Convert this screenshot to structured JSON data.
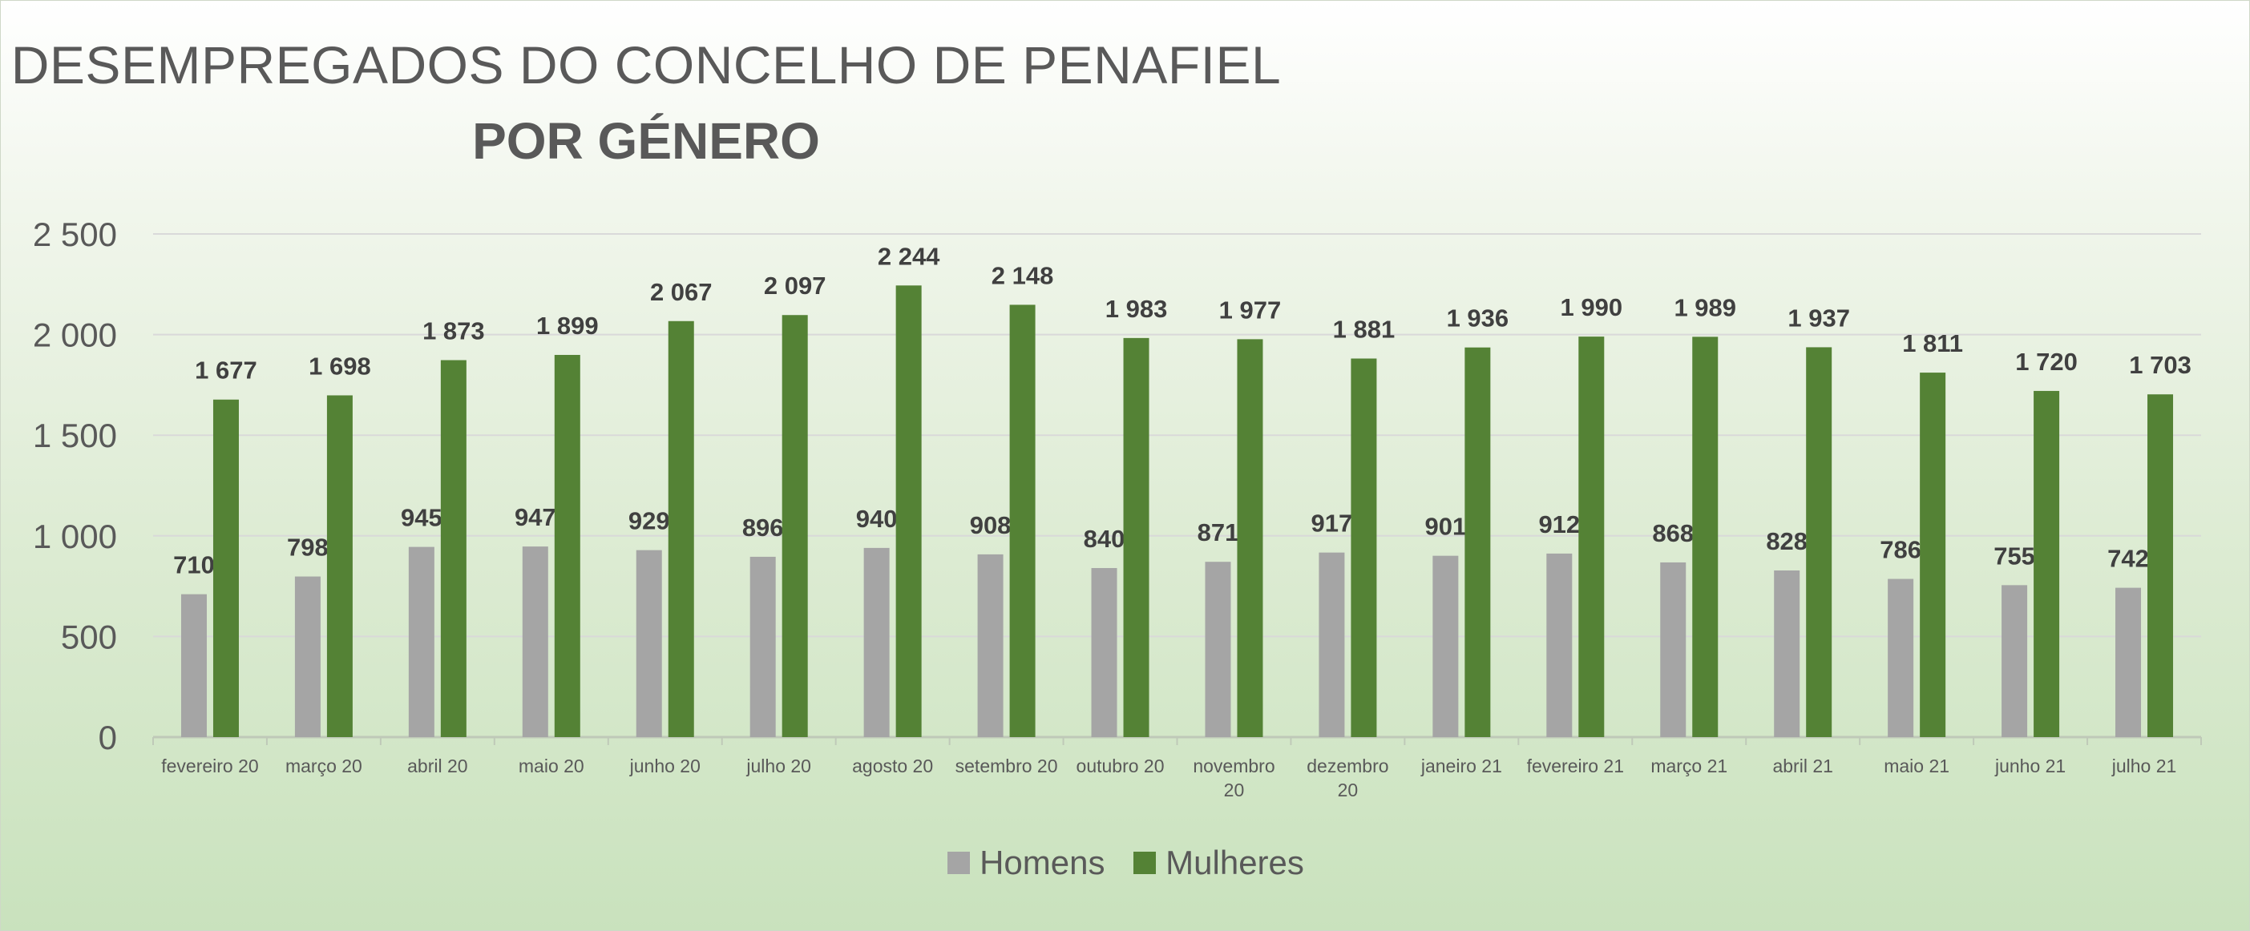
{
  "chart_data": {
    "type": "bar",
    "title": "DESEMPREGADOS DO CONCELHO DE PENAFIEL",
    "subtitle": "POR GÉNERO",
    "categories": [
      [
        "fevereiro 20"
      ],
      [
        "março 20"
      ],
      [
        "abril 20"
      ],
      [
        "maio 20"
      ],
      [
        "junho 20"
      ],
      [
        "julho 20"
      ],
      [
        "agosto 20"
      ],
      [
        "setembro 20"
      ],
      [
        "outubro 20"
      ],
      [
        "novembro",
        "20"
      ],
      [
        "dezembro",
        "20"
      ],
      [
        "janeiro 21"
      ],
      [
        "fevereiro 21"
      ],
      [
        "março 21"
      ],
      [
        "abril 21"
      ],
      [
        "maio 21"
      ],
      [
        "junho 21"
      ],
      [
        "julho 21"
      ]
    ],
    "series": [
      {
        "name": "Homens",
        "color": "#a5a5a5",
        "values": [
          710,
          798,
          945,
          947,
          929,
          896,
          940,
          908,
          840,
          871,
          917,
          901,
          912,
          868,
          828,
          786,
          755,
          742
        ],
        "labels": [
          "710",
          "798",
          "945",
          "947",
          "929",
          "896",
          "940",
          "908",
          "840",
          "871",
          "917",
          "901",
          "912",
          "868",
          "828",
          "786",
          "755",
          "742"
        ]
      },
      {
        "name": "Mulheres",
        "color": "#548235",
        "values": [
          1677,
          1698,
          1873,
          1899,
          2067,
          2097,
          2244,
          2148,
          1983,
          1977,
          1881,
          1936,
          1990,
          1989,
          1937,
          1811,
          1720,
          1703
        ],
        "labels": [
          "1 677",
          "1 698",
          "1 873",
          "1 899",
          "2 067",
          "2 097",
          "2 244",
          "2 148",
          "1 983",
          "1 977",
          "1 881",
          "1 936",
          "1 990",
          "1 989",
          "1 937",
          "1 811",
          "1 720",
          "1 703"
        ]
      }
    ],
    "yticks": [
      0,
      500,
      1000,
      1500,
      2000,
      2500
    ],
    "ytick_labels": [
      "0",
      "500",
      "1 000",
      "1 500",
      "2 000",
      "2 500"
    ],
    "ylim": [
      0,
      2500
    ],
    "grid": true,
    "legend_position": "bottom"
  }
}
